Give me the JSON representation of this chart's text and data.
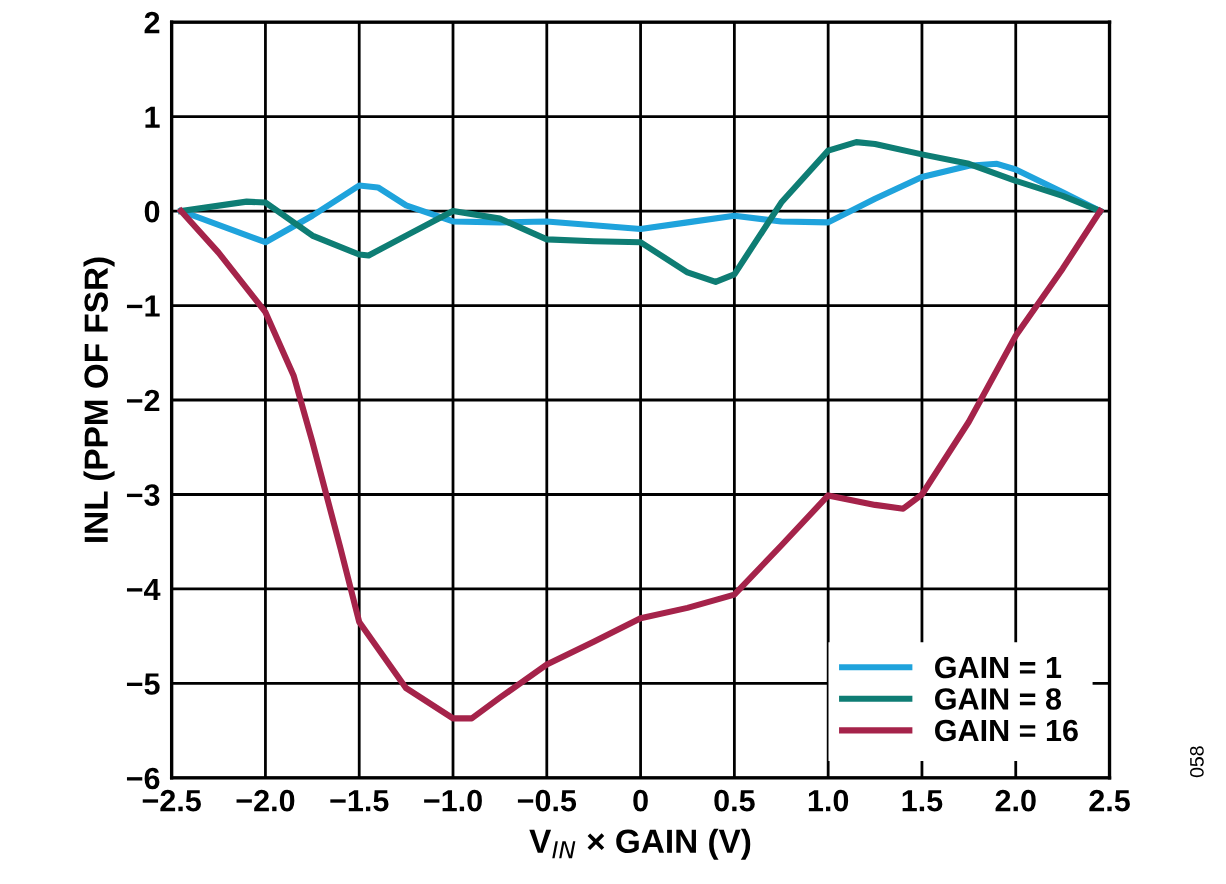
{
  "chart_data": {
    "type": "line",
    "xlabel": "V$_{IN}$ × GAIN (V)",
    "ylabel": "INL (PPM OF FSR)",
    "xlim": [
      -2.5,
      2.5
    ],
    "ylim": [
      -6,
      2
    ],
    "xticks": [
      {
        "value": -2.5,
        "label": "−2.5"
      },
      {
        "value": -2.0,
        "label": "−2.0"
      },
      {
        "value": -1.5,
        "label": "−1.5"
      },
      {
        "value": -1.0,
        "label": "−1.0"
      },
      {
        "value": -0.5,
        "label": "−0.5"
      },
      {
        "value": 0,
        "label": "0"
      },
      {
        "value": 0.5,
        "label": "0.5"
      },
      {
        "value": 1.0,
        "label": "1.0"
      },
      {
        "value": 1.5,
        "label": "1.5"
      },
      {
        "value": 2.0,
        "label": "2.0"
      },
      {
        "value": 2.5,
        "label": "2.5"
      }
    ],
    "yticks": [
      {
        "value": -6,
        "label": "−6"
      },
      {
        "value": -5,
        "label": "−5"
      },
      {
        "value": -4,
        "label": "−4"
      },
      {
        "value": -3,
        "label": "−3"
      },
      {
        "value": -2,
        "label": "−2"
      },
      {
        "value": -1,
        "label": "−1"
      },
      0,
      1,
      2
    ],
    "grid": true,
    "legend": "bottom right",
    "line_style": "solid",
    "marker": "none",
    "annotations": [
      "058"
    ],
    "series": [
      {
        "name": "GAIN = 1",
        "color": "#1fa3dc",
        "x": [
          -2.45,
          -2.0,
          -1.75,
          -1.5,
          -1.4,
          -1.25,
          -1.0,
          -0.75,
          -0.5,
          -0.25,
          0,
          0.25,
          0.5,
          0.75,
          1.0,
          1.25,
          1.5,
          1.75,
          1.9,
          2.0,
          2.25,
          2.45
        ],
        "values": [
          0,
          -0.33,
          -0.05,
          0.27,
          0.25,
          0.06,
          -0.11,
          -0.12,
          -0.11,
          -0.15,
          -0.19,
          -0.12,
          -0.05,
          -0.11,
          -0.12,
          0.13,
          0.36,
          0.48,
          0.5,
          0.44,
          0.2,
          0
        ]
      },
      {
        "name": "GAIN = 8",
        "color": "#0e7d74",
        "x": [
          -2.45,
          -2.1,
          -2.0,
          -1.75,
          -1.5,
          -1.45,
          -1.25,
          -1.0,
          -0.75,
          -0.5,
          -0.25,
          0,
          0.25,
          0.4,
          0.5,
          0.75,
          1.0,
          1.15,
          1.25,
          1.5,
          1.75,
          2.0,
          2.25,
          2.45
        ],
        "values": [
          0,
          0.1,
          0.09,
          -0.26,
          -0.46,
          -0.47,
          -0.26,
          0,
          -0.08,
          -0.3,
          -0.32,
          -0.33,
          -0.65,
          -0.75,
          -0.67,
          0.09,
          0.64,
          0.73,
          0.71,
          0.6,
          0.5,
          0.32,
          0.16,
          0
        ]
      },
      {
        "name": "GAIN = 16",
        "color": "#a5234a",
        "x": [
          -2.45,
          -2.25,
          -2.0,
          -1.85,
          -1.75,
          -1.6,
          -1.5,
          -1.25,
          -1.0,
          -0.9,
          -0.75,
          -0.5,
          -0.25,
          0,
          0.25,
          0.5,
          0.75,
          1.0,
          1.25,
          1.4,
          1.5,
          1.75,
          2.0,
          2.25,
          2.45
        ],
        "values": [
          0,
          -0.44,
          -1.07,
          -1.74,
          -2.44,
          -3.57,
          -4.35,
          -5.05,
          -5.37,
          -5.37,
          -5.15,
          -4.8,
          -4.56,
          -4.31,
          -4.2,
          -4.06,
          -3.54,
          -3.01,
          -3.11,
          -3.15,
          -3.0,
          -2.23,
          -1.32,
          -0.61,
          0
        ]
      }
    ]
  }
}
